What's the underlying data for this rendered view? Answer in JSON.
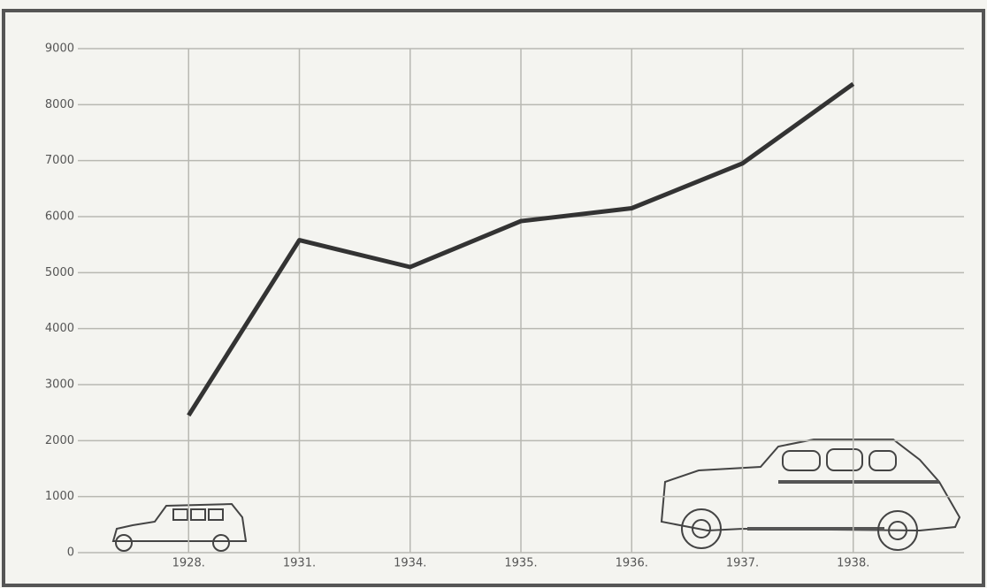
{
  "chart_data": {
    "type": "line",
    "categories": [
      "1928.",
      "1931.",
      "1934.",
      "1935.",
      "1936.",
      "1937.",
      "1938."
    ],
    "values": [
      2450,
      5580,
      5100,
      5920,
      6150,
      6950,
      8370
    ],
    "color": "#333333",
    "ylim": [
      0,
      9000
    ],
    "yticks": [
      0,
      1000,
      2000,
      3000,
      4000,
      5000,
      6000,
      7000,
      8000,
      9000
    ],
    "grid": true
  }
}
